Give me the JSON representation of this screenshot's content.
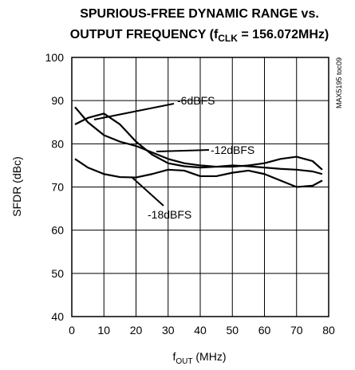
{
  "chart_data": {
    "type": "line",
    "title": [
      "SPURIOUS-FREE DYNAMIC RANGE vs.",
      [
        "OUTPUT FREQUENCY (f",
        "CLK",
        " = 156.072MHz)"
      ]
    ],
    "side_label": "MAX5195 toc09",
    "x_label": [
      "f",
      "OUT",
      " (MHz)"
    ],
    "y_label": "SFDR (dBc)",
    "x": [
      1,
      5,
      10,
      15,
      20,
      25,
      30,
      35,
      40,
      45,
      50,
      55,
      60,
      65,
      70,
      75,
      78
    ],
    "series": [
      {
        "name": "-6dBFS",
        "color": "#000000",
        "values": [
          84.5,
          86,
          87,
          84.5,
          80.5,
          77.5,
          75.5,
          74.8,
          74.5,
          74.7,
          75,
          74.8,
          74.5,
          74.2,
          74,
          73.6,
          73
        ]
      },
      {
        "name": "-12dBFS",
        "color": "#000000",
        "values": [
          88.5,
          85,
          82,
          80.5,
          79.5,
          78,
          76.5,
          75.5,
          75,
          74.7,
          74.7,
          75,
          75.5,
          76.5,
          77,
          76,
          74
        ]
      },
      {
        "name": "-18dBFS",
        "color": "#000000",
        "values": [
          76.5,
          74.5,
          73,
          72.3,
          72.2,
          73,
          74,
          73.8,
          72.5,
          72.5,
          73.3,
          73.8,
          73,
          71.5,
          70,
          70.3,
          71.5
        ]
      }
    ],
    "xlim": [
      0,
      80
    ],
    "xticks": [
      0,
      10,
      20,
      30,
      40,
      50,
      60,
      70,
      80
    ],
    "ylim": [
      40,
      100
    ],
    "yticks": [
      40,
      50,
      60,
      70,
      80,
      90,
      100
    ],
    "grid": true
  }
}
